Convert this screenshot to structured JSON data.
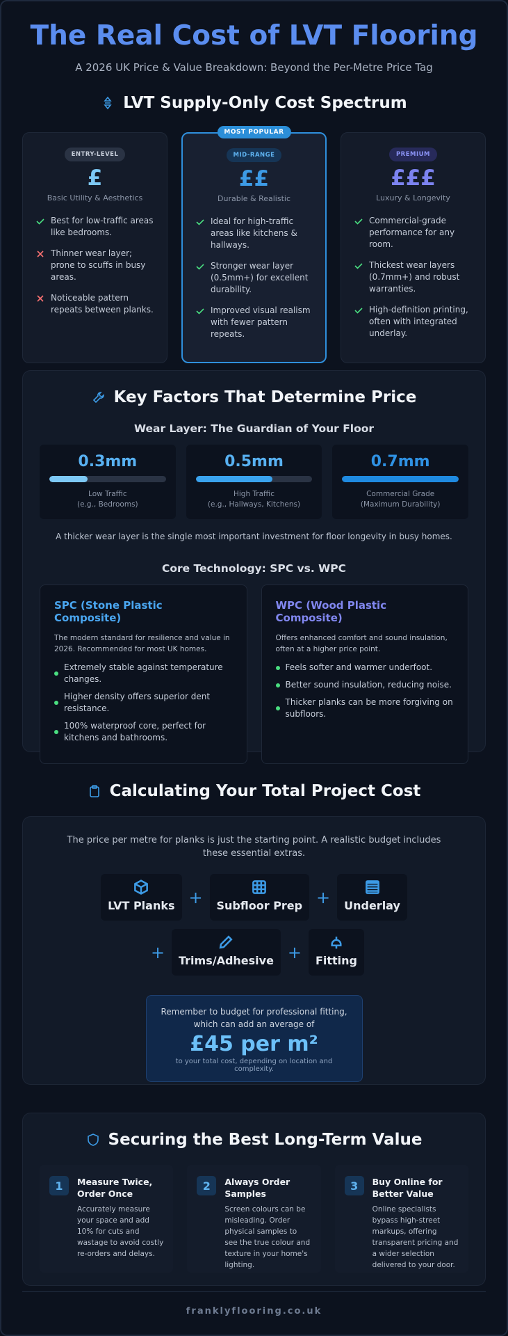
{
  "header": {
    "title": "The Real Cost of LVT Flooring",
    "subtitle": "A 2026 UK Price & Value Breakdown: Beyond the Per-Metre Price Tag"
  },
  "spectrum": {
    "heading": "LVT Supply-Only Cost Spectrum",
    "popular_label": "MOST POPULAR",
    "tiers": [
      {
        "badge": "ENTRY-LEVEL",
        "symbol": "£",
        "tagline": "Basic Utility & Aesthetics",
        "points": [
          {
            "text": "Best for low-traffic areas like bedrooms.",
            "positive": true
          },
          {
            "text": "Thinner wear layer; prone to scuffs in busy areas.",
            "positive": false
          },
          {
            "text": "Noticeable pattern repeats between planks.",
            "positive": false
          }
        ]
      },
      {
        "badge": "MID-RANGE",
        "symbol": "££",
        "tagline": "Durable & Realistic",
        "points": [
          {
            "text": "Ideal for high-traffic areas like kitchens & hallways.",
            "positive": true
          },
          {
            "text": "Stronger wear layer (0.5mm+) for excellent durability.",
            "positive": true
          },
          {
            "text": "Improved visual realism with fewer pattern repeats.",
            "positive": true
          }
        ]
      },
      {
        "badge": "PREMIUM",
        "symbol": "£££",
        "tagline": "Luxury & Longevity",
        "points": [
          {
            "text": "Commercial-grade performance for any room.",
            "positive": true
          },
          {
            "text": "Thickest wear layers (0.7mm+) and robust warranties.",
            "positive": true
          },
          {
            "text": "High-definition printing, often with integrated underlay.",
            "positive": true
          }
        ]
      }
    ]
  },
  "factors": {
    "heading": "Key Factors That Determine Price",
    "wear_heading": "Wear Layer: The Guardian of Your Floor",
    "wear": [
      {
        "thickness": "0.3mm",
        "label": "Low Traffic",
        "note": "(e.g., Bedrooms)"
      },
      {
        "thickness": "0.5mm",
        "label": "High Traffic",
        "note": "(e.g., Hallways, Kitchens)"
      },
      {
        "thickness": "0.7mm",
        "label": "Commercial Grade",
        "note": "(Maximum Durability)"
      }
    ],
    "wear_note": "A thicker wear layer is the single most important investment for floor longevity in busy homes.",
    "core_heading": "Core Technology: SPC vs. WPC",
    "cores": [
      {
        "title": "SPC (Stone Plastic Composite)",
        "description": "The modern standard for resilience and value in 2026. Recommended for most UK homes.",
        "points": [
          "Extremely stable against temperature changes.",
          "Higher density offers superior dent resistance.",
          "100% waterproof core, perfect for kitchens and bathrooms."
        ]
      },
      {
        "title": "WPC (Wood Plastic Composite)",
        "description": "Offers enhanced comfort and sound insulation, often at a higher price point.",
        "points": [
          "Feels softer and warmer underfoot.",
          "Better sound insulation, reducing noise.",
          "Thicker planks can be more forgiving on subfloors."
        ]
      }
    ]
  },
  "cost": {
    "heading": "Calculating Your Total Project Cost",
    "intro": "The price per metre for planks is just the starting point. A realistic budget includes these essential extras.",
    "items": [
      "LVT Planks",
      "Subfloor Prep",
      "Underlay",
      "Trims/Adhesive",
      "Fitting"
    ],
    "reminder": "Remember to budget for professional fitting, which can add an average of",
    "amount": "£45 per m²",
    "footnote": "to your total cost, depending on location and complexity."
  },
  "value": {
    "heading": "Securing the Best Long-Term Value",
    "tips": [
      {
        "number": "1",
        "title": "Measure Twice, Order Once",
        "text": "Accurately measure your space and add 10% for cuts and wastage to avoid costly re-orders and delays."
      },
      {
        "number": "2",
        "title": "Always Order Samples",
        "text": "Screen colours can be misleading. Order physical samples to see the true colour and texture in your home's lighting."
      },
      {
        "number": "3",
        "title": "Buy Online for Better Value",
        "text": "Online specialists bypass high-street markups, offering transparent pricing and a wider selection delivered to your door."
      }
    ]
  },
  "footer": "franklyflooring.co.uk"
}
